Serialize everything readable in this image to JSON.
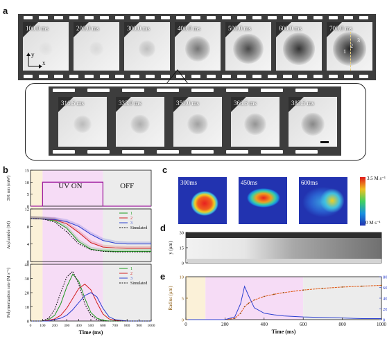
{
  "panel_a": {
    "label": "a",
    "top_frames": [
      "100.0 ms",
      "200.0 ms",
      "300.0 ms",
      "400.0 ms",
      "500.0 ms",
      "600.0 ms",
      "700.0 ms"
    ],
    "zoom_frames": [
      "316.5 ms",
      "333.0 ms",
      "350.0 ms",
      "366.5 ms",
      "383.5 ms"
    ],
    "axis_y": "y",
    "axis_x": "x",
    "positions": [
      "1",
      "2",
      "3"
    ]
  },
  "panel_b": {
    "label": "b",
    "uv_on": "UV ON",
    "off": "OFF",
    "top_ylabel": "391 nm (mW)",
    "mid_ylabel": "Acylamide (M)",
    "bot_ylabel": "Polymerization rate (M s⁻¹)",
    "xlabel": "Time (ms)",
    "legend": [
      "1",
      "2",
      "3",
      "Simulated"
    ]
  },
  "panel_c": {
    "label": "c",
    "frames": [
      "300ms",
      "450ms",
      "600ms"
    ],
    "scale_max": "3.5 M s⁻¹",
    "scale_min": "0 M s⁻¹"
  },
  "panel_d": {
    "label": "d",
    "ylabel": "y (μm)"
  },
  "panel_e": {
    "label": "e",
    "ylabel_left": "Radius (μm)",
    "ylabel_right": "Velocity (μm s⁻¹)",
    "xlabel": "Time (ms)"
  },
  "chart_data": [
    {
      "type": "line",
      "panel": "b-top",
      "x": [
        0,
        100,
        100,
        600,
        600,
        1000
      ],
      "series": [
        {
          "values": [
            0,
            0,
            10,
            10,
            0,
            0
          ],
          "color": "#a020a0"
        }
      ],
      "xlim": [
        0,
        1000
      ],
      "ylim": [
        0,
        15
      ],
      "yticks": [
        "0",
        "5",
        "10",
        "15"
      ]
    },
    {
      "type": "line",
      "panel": "b-mid",
      "x": [
        0,
        100,
        200,
        300,
        400,
        500,
        600,
        700,
        800,
        900,
        1000
      ],
      "series": [
        {
          "name": "1",
          "color": "#1a9a1a",
          "values": [
            9.8,
            9.7,
            9.3,
            7.6,
            4.5,
            2.8,
            2.4,
            2.3,
            2.3,
            2.3,
            2.3
          ]
        },
        {
          "name": "2",
          "color": "#d22020",
          "values": [
            9.8,
            9.7,
            9.5,
            8.6,
            6.6,
            4.3,
            3.3,
            3.1,
            3.0,
            3.0,
            3.0
          ]
        },
        {
          "name": "3",
          "color": "#2a3fd0",
          "values": [
            9.8,
            9.7,
            9.6,
            9.1,
            8.0,
            6.2,
            4.8,
            4.2,
            4.0,
            4.0,
            4.0
          ]
        },
        {
          "name": "Simulated",
          "color": "#111111",
          "values": [
            9.8,
            9.7,
            9.0,
            6.8,
            4.0,
            2.7,
            2.3,
            2.2,
            2.2,
            2.2,
            2.2
          ]
        }
      ],
      "xlim": [
        0,
        1000
      ],
      "ylim": [
        0,
        12
      ],
      "yticks": [
        "0",
        "4",
        "8",
        "12"
      ]
    },
    {
      "type": "line",
      "panel": "b-bot",
      "x": [
        0,
        100,
        150,
        200,
        250,
        300,
        350,
        400,
        450,
        500,
        550,
        600,
        650,
        700,
        800,
        1000
      ],
      "series": [
        {
          "name": "1",
          "color": "#1a9a1a",
          "values": [
            0,
            0,
            1,
            4,
            12,
            24,
            33,
            28,
            16,
            6,
            2,
            0.5,
            0,
            0,
            0,
            0
          ]
        },
        {
          "name": "2",
          "color": "#d22020",
          "values": [
            0,
            0,
            0.5,
            1.5,
            4,
            9,
            16,
            23,
            26,
            22,
            13,
            5,
            1.5,
            0.5,
            0,
            0
          ]
        },
        {
          "name": "3",
          "color": "#2a3fd0",
          "values": [
            0,
            0,
            0,
            1,
            2,
            4,
            8,
            13,
            18,
            20,
            17,
            9,
            3,
            1,
            0,
            0
          ]
        },
        {
          "name": "Simulated",
          "color": "#111111",
          "values": [
            0,
            0,
            2,
            8,
            20,
            31,
            35,
            26,
            12,
            4,
            1,
            0,
            0,
            0,
            0,
            0
          ]
        }
      ],
      "xlim": [
        0,
        1000
      ],
      "ylim": [
        0,
        40
      ],
      "xticks": [
        "0",
        "100",
        "200",
        "300",
        "400",
        "500",
        "600",
        "700",
        "800",
        "900",
        "1000"
      ],
      "yticks": [
        "0",
        "10",
        "20",
        "30",
        "40"
      ]
    },
    {
      "type": "line",
      "panel": "e",
      "x": [
        0,
        100,
        200,
        250,
        280,
        300,
        320,
        350,
        400,
        450,
        500,
        600,
        700,
        800,
        900,
        1000
      ],
      "series": [
        {
          "axis": "left",
          "color": "#e06020",
          "values": [
            0,
            0,
            0,
            0.3,
            1.5,
            3.0,
            3.8,
            4.6,
            5.4,
            5.9,
            6.3,
            6.9,
            7.3,
            7.6,
            7.8,
            8.0
          ]
        },
        {
          "axis": "right",
          "color": "#2a3fd0",
          "values": [
            0,
            0,
            0,
            5,
            30,
            62,
            45,
            22,
            12,
            9,
            7,
            5,
            4,
            3,
            2,
            2
          ]
        }
      ],
      "xlim": [
        0,
        1000
      ],
      "ylim_left": [
        0,
        10
      ],
      "ylim_right": [
        0,
        80
      ],
      "xticks": [
        "0",
        "200",
        "400",
        "600",
        "800",
        "1000"
      ],
      "yticks_left": [
        "0",
        "5",
        "10"
      ],
      "yticks_right": [
        "0",
        "20",
        "40",
        "60",
        "80"
      ]
    }
  ]
}
